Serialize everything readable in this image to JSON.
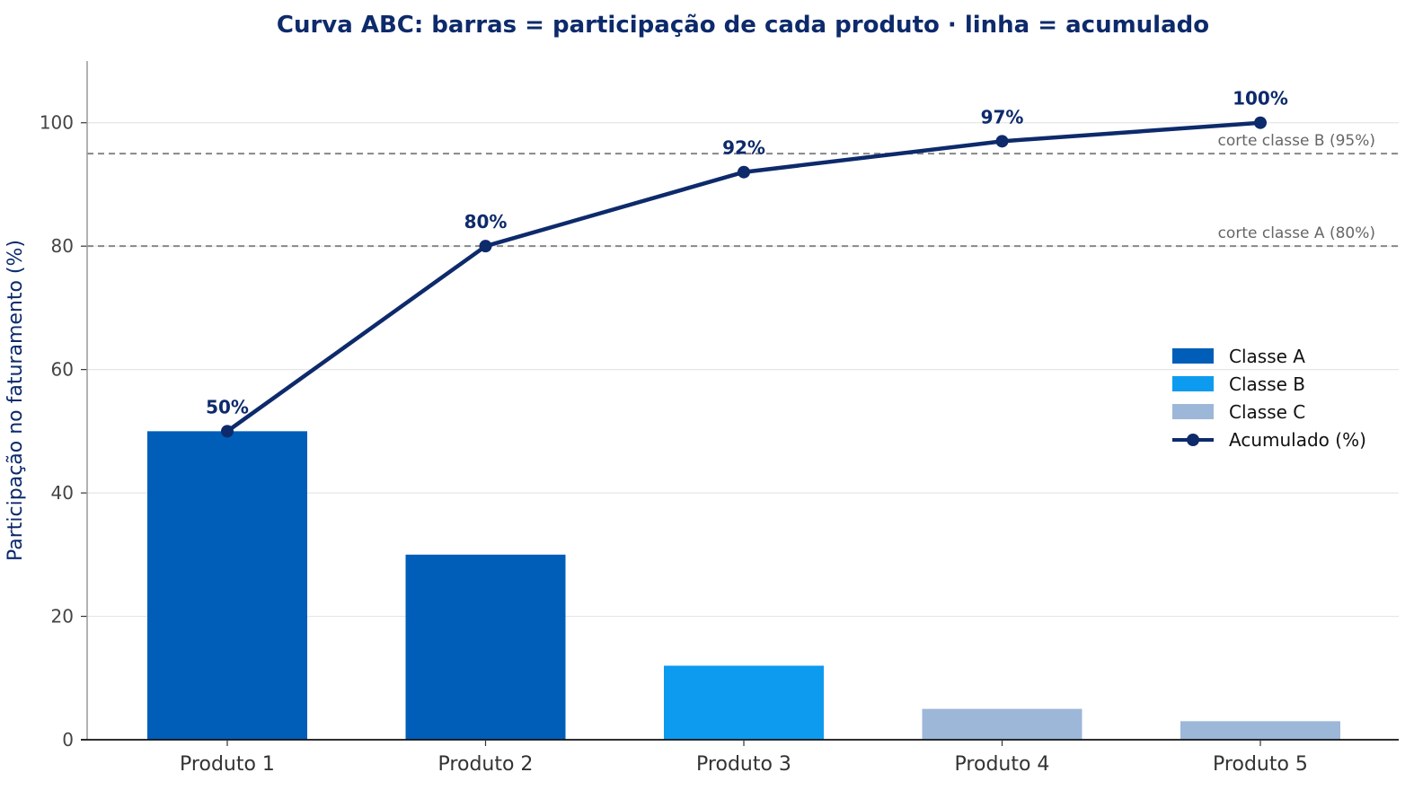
{
  "chart_data": {
    "type": "bar",
    "title": "Curva ABC: barras = participação de cada produto · linha = acumulado",
    "xlabel": "",
    "ylabel": "Participação no faturamento (%)",
    "ylim": [
      0,
      110
    ],
    "yticks": [
      0,
      20,
      40,
      60,
      80,
      100
    ],
    "grid": "horizontal",
    "categories": [
      "Produto 1",
      "Produto 2",
      "Produto 3",
      "Produto 4",
      "Produto 5"
    ],
    "series": [
      {
        "name": "Participação",
        "type": "bar",
        "values": [
          50,
          30,
          12,
          5,
          3
        ],
        "classes": [
          "Classe A",
          "Classe A",
          "Classe B",
          "Classe C",
          "Classe C"
        ]
      },
      {
        "name": "Acumulado (%)",
        "type": "line",
        "values": [
          50,
          80,
          92,
          97,
          100
        ],
        "labels": [
          "50%",
          "80%",
          "92%",
          "97%",
          "100%"
        ],
        "color": "#0d2a6b"
      }
    ],
    "reference_lines": [
      {
        "value": 95,
        "label": "corte classe B (95%)"
      },
      {
        "value": 80,
        "label": "corte classe A (80%)"
      }
    ],
    "class_colors": {
      "Classe A": "#005eb8",
      "Classe B": "#0d9bef",
      "Classe C": "#9db7d9"
    },
    "legend": {
      "placement": "center-right",
      "items": [
        {
          "label": "Classe A",
          "kind": "patch",
          "color": "#005eb8"
        },
        {
          "label": "Classe B",
          "kind": "patch",
          "color": "#0d9bef"
        },
        {
          "label": "Classe C",
          "kind": "patch",
          "color": "#9db7d9"
        },
        {
          "label": "Acumulado (%)",
          "kind": "line-marker",
          "color": "#0d2a6b"
        }
      ]
    }
  }
}
